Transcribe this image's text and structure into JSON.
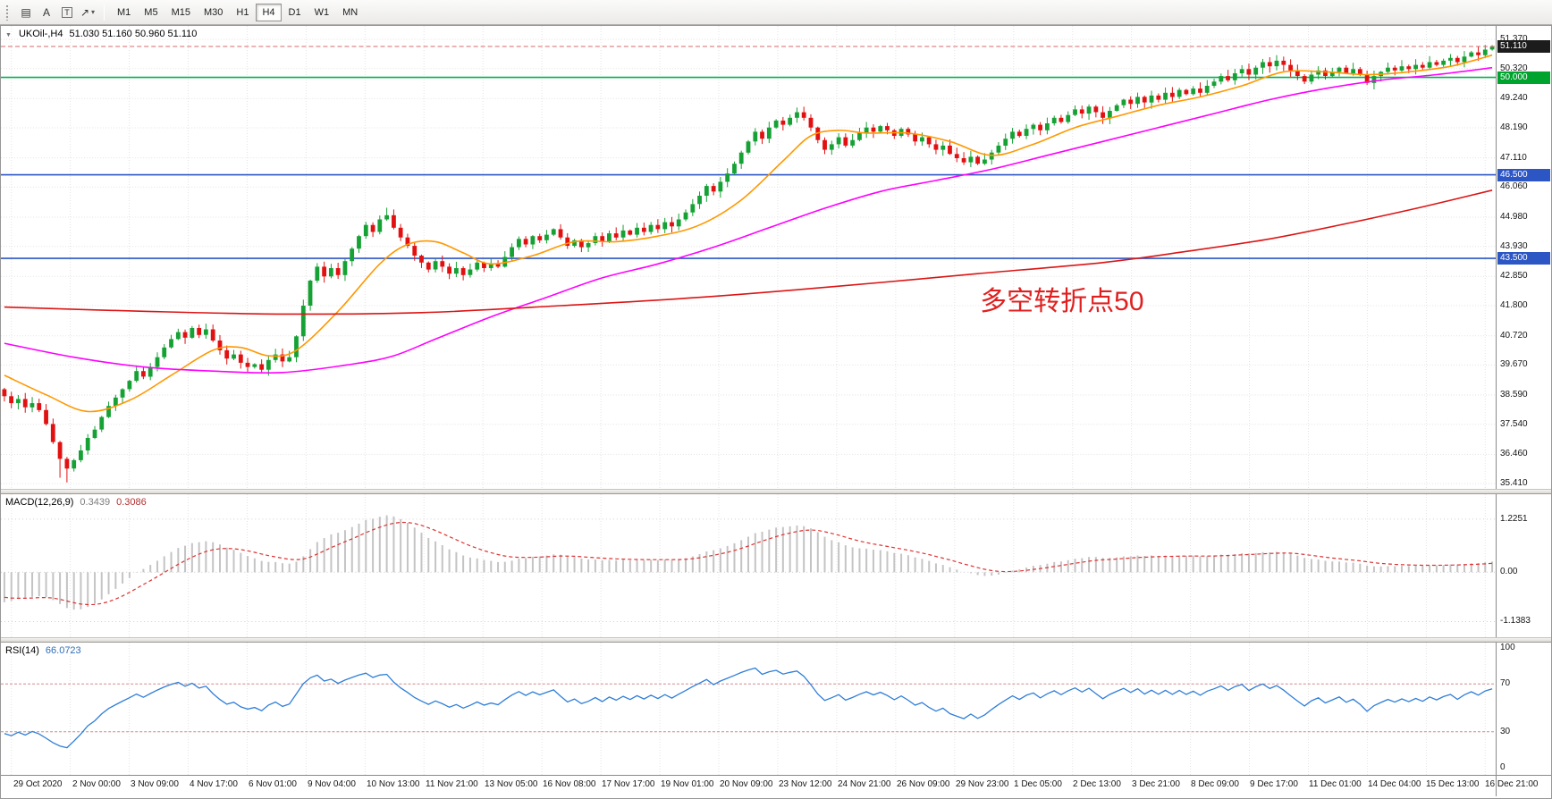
{
  "toolbar": {
    "icons": [
      {
        "name": "chart-window-icon",
        "glyph": "▤"
      },
      {
        "name": "annotation-a-icon",
        "glyph": "A"
      },
      {
        "name": "text-label-icon",
        "glyph": "T",
        "boxed": true
      },
      {
        "name": "cursor-tool-icon",
        "glyph": "↗",
        "caret": "▾"
      }
    ],
    "timeframes": [
      "M1",
      "M5",
      "M15",
      "M30",
      "H1",
      "H4",
      "D1",
      "W1",
      "MN"
    ],
    "active_timeframe": "H4"
  },
  "chart": {
    "collapse_glyph": "▼",
    "title": "UKOil-,H4",
    "ohlc": "51.030 51.160 50.960 51.110"
  },
  "indicators": {
    "macd": {
      "label": "MACD(12,26,9)",
      "main_value": "0.3439",
      "signal_value": "0.3086"
    },
    "rsi": {
      "label": "RSI(14)",
      "value": "66.0723"
    }
  },
  "chart_data": {
    "type": "candlestick",
    "symbol": "UKOil-",
    "timeframe": "H4",
    "last_candle_ohlc": {
      "open": 51.03,
      "high": 51.16,
      "low": 50.96,
      "close": 51.11
    },
    "current_price": 51.11,
    "price_axis_range": [
      35.22,
      51.85
    ],
    "price_labels": [
      "51.370",
      "50.320",
      "49.240",
      "48.190",
      "47.110",
      "46.060",
      "44.980",
      "43.930",
      "42.850",
      "41.800",
      "40.720",
      "39.670",
      "38.590",
      "37.540",
      "36.460",
      "35.410"
    ],
    "price_badges": [
      {
        "text": "51.110",
        "price": 51.11,
        "bg": "#1c1c1c"
      },
      {
        "text": "50.000",
        "price": 50.0,
        "bg": "#00a32e"
      },
      {
        "text": "46.500",
        "price": 46.5,
        "bg": "#2d56c5"
      },
      {
        "text": "43.500",
        "price": 43.5,
        "bg": "#2d56c5"
      }
    ],
    "horizontal_lines": [
      {
        "price": 50.0,
        "color": "#00b050"
      },
      {
        "price": 46.5,
        "color": "#2d56c5"
      },
      {
        "price": 43.5,
        "color": "#2d56c5"
      }
    ],
    "time_labels": [
      "29 Oct 2020",
      "2 Nov 00:00",
      "3 Nov 09:00",
      "4 Nov 17:00",
      "6 Nov 01:00",
      "9 Nov 04:00",
      "10 Nov 13:00",
      "11 Nov 21:00",
      "13 Nov 05:00",
      "16 Nov 08:00",
      "17 Nov 17:00",
      "19 Nov 01:00",
      "20 Nov 09:00",
      "23 Nov 12:00",
      "24 Nov 21:00",
      "26 Nov 09:00",
      "29 Nov 23:00",
      "1 Dec 05:00",
      "2 Dec 13:00",
      "3 Dec 21:00",
      "8 Dec 09:00",
      "9 Dec 17:00",
      "11 Dec 01:00",
      "14 Dec 04:00",
      "15 Dec 13:00",
      "16 Dec 21:00"
    ],
    "closes": [
      38.55,
      38.3,
      38.45,
      38.15,
      38.3,
      38.05,
      37.55,
      36.9,
      36.3,
      35.95,
      36.25,
      36.6,
      37.05,
      37.35,
      37.8,
      38.2,
      38.5,
      38.8,
      39.1,
      39.45,
      39.25,
      39.6,
      39.95,
      40.3,
      40.6,
      40.85,
      40.65,
      41.0,
      40.75,
      40.95,
      40.55,
      40.2,
      39.9,
      40.05,
      39.75,
      39.6,
      39.7,
      39.5,
      39.85,
      40.05,
      39.8,
      39.95,
      40.7,
      41.8,
      42.7,
      43.2,
      42.85,
      43.15,
      42.9,
      43.4,
      43.85,
      44.3,
      44.7,
      44.45,
      44.9,
      45.05,
      44.6,
      44.25,
      43.95,
      43.6,
      43.35,
      43.1,
      43.4,
      43.2,
      42.95,
      43.15,
      42.9,
      43.1,
      43.35,
      43.15,
      43.3,
      43.2,
      43.55,
      43.9,
      44.2,
      44.0,
      44.3,
      44.15,
      44.35,
      44.55,
      44.25,
      43.95,
      44.15,
      43.9,
      44.05,
      44.3,
      44.1,
      44.4,
      44.25,
      44.5,
      44.35,
      44.6,
      44.45,
      44.7,
      44.55,
      44.8,
      44.65,
      44.9,
      45.15,
      45.45,
      45.75,
      46.1,
      45.9,
      46.25,
      46.55,
      46.9,
      47.3,
      47.7,
      48.05,
      47.8,
      48.2,
      48.45,
      48.3,
      48.55,
      48.75,
      48.55,
      48.2,
      47.75,
      47.4,
      47.6,
      47.85,
      47.55,
      47.75,
      48.0,
      48.2,
      48.05,
      48.25,
      48.1,
      47.9,
      48.15,
      47.95,
      47.7,
      47.85,
      47.6,
      47.4,
      47.55,
      47.25,
      47.1,
      46.95,
      47.15,
      46.9,
      47.05,
      47.3,
      47.55,
      47.8,
      48.05,
      47.9,
      48.15,
      48.3,
      48.1,
      48.35,
      48.55,
      48.4,
      48.65,
      48.85,
      48.7,
      48.95,
      48.75,
      48.55,
      48.8,
      49.0,
      49.2,
      49.05,
      49.3,
      49.1,
      49.35,
      49.2,
      49.45,
      49.3,
      49.55,
      49.4,
      49.6,
      49.45,
      49.7,
      49.85,
      50.05,
      49.9,
      50.15,
      50.3,
      50.1,
      50.35,
      50.55,
      50.4,
      50.6,
      50.45,
      50.25,
      50.05,
      49.85,
      50.1,
      50.25,
      50.05,
      50.2,
      50.35,
      50.15,
      50.3,
      50.1,
      49.8,
      50.05,
      50.2,
      50.35,
      50.25,
      50.4,
      50.3,
      50.45,
      50.35,
      50.55,
      50.45,
      50.6,
      50.7,
      50.55,
      50.75,
      50.9,
      50.8,
      51.0,
      51.11
    ],
    "wick_extremes": [
      {
        "index": 8,
        "low": 35.62
      },
      {
        "index": 9,
        "low": 35.45
      },
      {
        "index": 55,
        "high": 45.32
      },
      {
        "index": 114,
        "high": 48.92
      },
      {
        "index": 214,
        "high": 51.16,
        "low": 50.96
      }
    ],
    "moving_averages": [
      {
        "name": "ma-fast",
        "color": "#ff9800",
        "points": [
          [
            0,
            39.3
          ],
          [
            6,
            38.6
          ],
          [
            12,
            38.0
          ],
          [
            18,
            38.4
          ],
          [
            24,
            39.3
          ],
          [
            30,
            40.2
          ],
          [
            34,
            40.3
          ],
          [
            38,
            40.0
          ],
          [
            42,
            40.2
          ],
          [
            48,
            41.6
          ],
          [
            54,
            43.3
          ],
          [
            58,
            44.0
          ],
          [
            62,
            44.1
          ],
          [
            66,
            43.7
          ],
          [
            70,
            43.3
          ],
          [
            76,
            43.6
          ],
          [
            82,
            44.1
          ],
          [
            88,
            44.1
          ],
          [
            94,
            44.3
          ],
          [
            100,
            44.7
          ],
          [
            106,
            45.6
          ],
          [
            112,
            47.0
          ],
          [
            116,
            47.9
          ],
          [
            120,
            48.1
          ],
          [
            124,
            48.0
          ],
          [
            130,
            48.0
          ],
          [
            136,
            47.7
          ],
          [
            142,
            47.2
          ],
          [
            148,
            47.6
          ],
          [
            154,
            48.2
          ],
          [
            160,
            48.6
          ],
          [
            166,
            49.0
          ],
          [
            172,
            49.3
          ],
          [
            178,
            49.7
          ],
          [
            184,
            50.2
          ],
          [
            190,
            50.2
          ],
          [
            196,
            50.1
          ],
          [
            202,
            50.2
          ],
          [
            208,
            50.4
          ],
          [
            214,
            50.8
          ]
        ]
      },
      {
        "name": "ma-medium",
        "color": "#ff00ff",
        "points": [
          [
            0,
            40.45
          ],
          [
            10,
            39.95
          ],
          [
            20,
            39.6
          ],
          [
            30,
            39.45
          ],
          [
            40,
            39.4
          ],
          [
            50,
            39.7
          ],
          [
            56,
            40.0
          ],
          [
            62,
            40.6
          ],
          [
            70,
            41.4
          ],
          [
            78,
            42.1
          ],
          [
            86,
            42.8
          ],
          [
            94,
            43.3
          ],
          [
            102,
            43.9
          ],
          [
            110,
            44.6
          ],
          [
            118,
            45.3
          ],
          [
            126,
            45.9
          ],
          [
            134,
            46.3
          ],
          [
            142,
            46.7
          ],
          [
            150,
            47.2
          ],
          [
            158,
            47.7
          ],
          [
            166,
            48.2
          ],
          [
            174,
            48.7
          ],
          [
            182,
            49.2
          ],
          [
            190,
            49.6
          ],
          [
            198,
            49.9
          ],
          [
            206,
            50.1
          ],
          [
            214,
            50.35
          ]
        ]
      },
      {
        "name": "ma-slow",
        "color": "#dc1414",
        "points": [
          [
            0,
            41.75
          ],
          [
            20,
            41.6
          ],
          [
            40,
            41.5
          ],
          [
            60,
            41.55
          ],
          [
            80,
            41.8
          ],
          [
            100,
            42.1
          ],
          [
            120,
            42.5
          ],
          [
            140,
            42.95
          ],
          [
            158,
            43.35
          ],
          [
            170,
            43.75
          ],
          [
            182,
            44.2
          ],
          [
            194,
            44.8
          ],
          [
            204,
            45.35
          ],
          [
            214,
            45.95
          ]
        ]
      }
    ],
    "macd": {
      "params": [
        12,
        26,
        9
      ],
      "current_macd": 0.3439,
      "current_signal": 0.3086,
      "initial": {
        "macd": -0.75,
        "signal": -0.55
      },
      "range": [
        -1.5,
        1.8
      ],
      "axis_labels": [
        "1.2251",
        "0.00",
        "-1.1383"
      ]
    },
    "rsi": {
      "period": 14,
      "current": 66.0723,
      "levels": [
        30,
        70
      ],
      "range": [
        0,
        100
      ],
      "axis_labels": [
        "100",
        "70",
        "30",
        "0"
      ]
    },
    "annotation": {
      "text": "多空转折点50",
      "color": "#e02020",
      "x_fraction": 0.655,
      "anchor_price": 41.8,
      "font_size": 30
    },
    "colors": {
      "bull": "#16a135",
      "bear": "#e21111",
      "grid": "#e3e3e3",
      "macd_hist": "#c4c4c4",
      "macd_signal": "#d33",
      "rsi_line": "#2f7ed8",
      "rsi_level": "#cf8a8a",
      "current_price_line": "#d46a6a"
    }
  }
}
